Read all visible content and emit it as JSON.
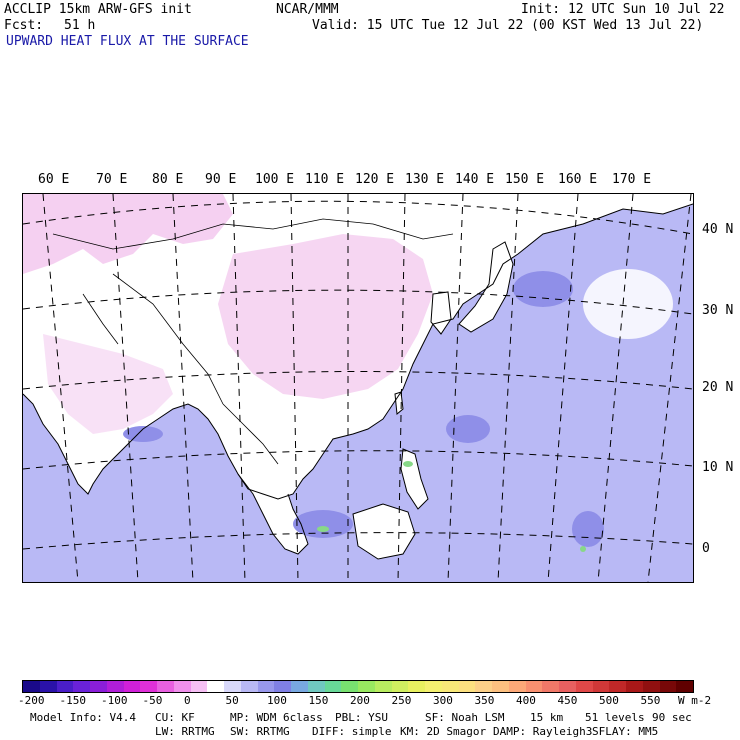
{
  "header": {
    "model": "ACCLIP 15km ARW-GFS init",
    "org": "NCAR/MMM",
    "init": "Init: 12 UTC Sun 10 Jul 22",
    "fcst_label": "Fcst:",
    "fcst_value": "51 h",
    "valid": "Valid: 15 UTC Tue 12 Jul 22 (00 KST Wed 13 Jul 22)",
    "field": "UPWARD HEAT FLUX AT THE SURFACE"
  },
  "map": {
    "lon_labels": [
      "60 E",
      "70 E",
      "80 E",
      "90 E",
      "100 E",
      "110 E",
      "120 E",
      "130 E",
      "140 E",
      "150 E",
      "160 E",
      "170 E"
    ],
    "lat_labels": [
      "40 N",
      "30 N",
      "20 N",
      "10 N",
      "0"
    ],
    "colors": {
      "land_pink": "#f3c8ee",
      "land_white": "#ffffff",
      "ocean": "#b9b9f5",
      "ocean_dark": "#8f8fe8",
      "green": "#88d888",
      "coast": "#000000"
    }
  },
  "colorbar": {
    "labels": [
      "-200",
      "-150",
      "-100",
      "-50",
      "0",
      "50",
      "100",
      "150",
      "200",
      "250",
      "300",
      "350",
      "400",
      "450",
      "500",
      "550"
    ],
    "units": "W m-2",
    "colors": [
      "#1a0a8a",
      "#2a12a8",
      "#4a1ec8",
      "#6a22d8",
      "#8a1ed8",
      "#b01ed8",
      "#d020d8",
      "#e030d8",
      "#e860e0",
      "#f090ec",
      "#f6c0f4",
      "#ffffff",
      "#d8d8fa",
      "#b8b8f4",
      "#9898ec",
      "#8080e4",
      "#78a8e0",
      "#70c8c0",
      "#68d898",
      "#78e070",
      "#98e860",
      "#b8ec60",
      "#d0ee60",
      "#e8f060",
      "#f4f070",
      "#f8e878",
      "#fce080",
      "#fcd088",
      "#fcc080",
      "#fca878",
      "#f89070",
      "#f07868",
      "#e86060",
      "#e04848",
      "#d03838",
      "#c02828",
      "#a81818",
      "#901010",
      "#780808",
      "#600000"
    ]
  },
  "footer": {
    "line1": [
      "Model Info: V4.4",
      "CU: KF",
      "MP: WDM 6class",
      "PBL: YSU",
      "SF: Noah LSM",
      "15 km",
      "51 levels",
      "90 sec"
    ],
    "line2": [
      "LW: RRTMG",
      "SW: RRTMG",
      "DIFF: simple",
      "KM: 2D Smagor",
      "DAMP: Rayleigh3",
      "SFLAY: MM5"
    ]
  }
}
